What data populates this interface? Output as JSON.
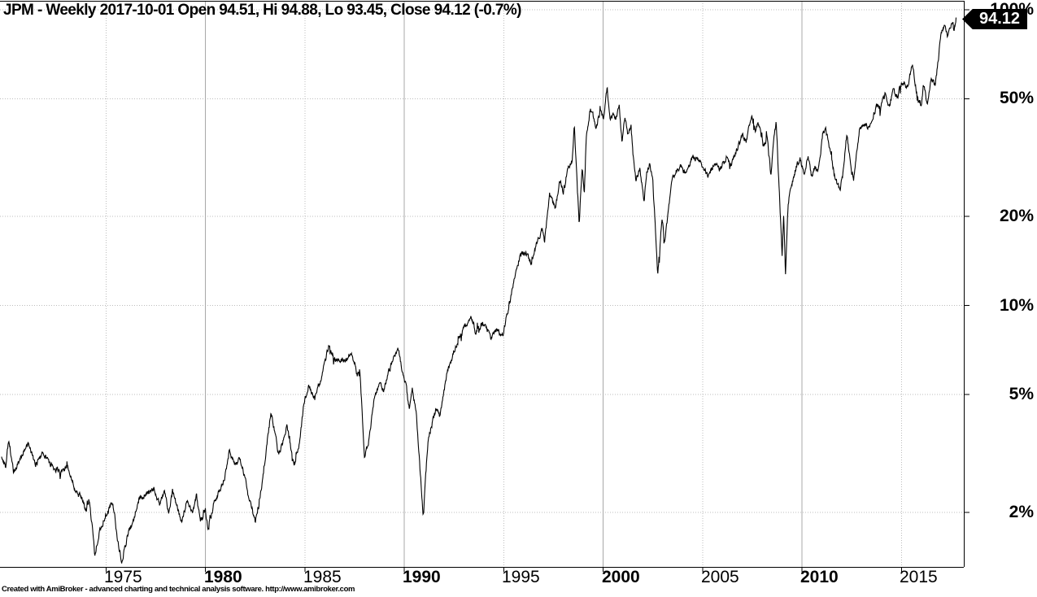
{
  "title": "JPM - Weekly 2017-10-01 Open 94.51, Hi 94.88, Lo 93.45, Close 94.12 (-0.7%)",
  "price_marker": {
    "label": "94.12"
  },
  "footer": {
    "credit": "Created with AmiBroker - advanced charting and technical analysis software. http://www.amibroker.com"
  },
  "colors": {
    "background": "#ffffff",
    "line": "#000000",
    "grid_dotted": "#bcbcbc",
    "grid_solid": "#a8a8a8",
    "axis": "#000000",
    "marker_bg": "#000000",
    "marker_text": "#ffffff"
  },
  "chart_data": {
    "type": "line",
    "title": "JPM - Weekly 2017-10-01 Open 94.51, Hi 94.88, Lo 93.45, Close 94.12 (-0.7%)",
    "symbol": "JPM",
    "interval": "Weekly",
    "last_bar": {
      "date": "2017-10-01",
      "open": 94.51,
      "high": 94.88,
      "low": 93.45,
      "close": 94.12,
      "change_pct": "-0.7%"
    },
    "y_axis": {
      "scale": "log",
      "side": "right",
      "ticks": [
        {
          "label": "100%",
          "value": 100
        },
        {
          "label": "50%",
          "value": 50
        },
        {
          "label": "20%",
          "value": 20
        },
        {
          "label": "10%",
          "value": 10
        },
        {
          "label": "5%",
          "value": 5
        },
        {
          "label": "2%",
          "value": 2
        }
      ],
      "range": [
        1.3,
        105
      ]
    },
    "x_axis": {
      "unit": "year",
      "range": [
        1969.7,
        2018.1
      ],
      "ticks": [
        {
          "label": "1975",
          "year": 1975,
          "bold": false
        },
        {
          "label": "1980",
          "year": 1980,
          "bold": true
        },
        {
          "label": "1985",
          "year": 1985,
          "bold": false
        },
        {
          "label": "1990",
          "year": 1990,
          "bold": true
        },
        {
          "label": "1995",
          "year": 1995,
          "bold": false
        },
        {
          "label": "2000",
          "year": 2000,
          "bold": true
        },
        {
          "label": "2005",
          "year": 2005,
          "bold": false
        },
        {
          "label": "2010",
          "year": 2010,
          "bold": true
        },
        {
          "label": "2015",
          "year": 2015,
          "bold": false
        }
      ]
    },
    "series": [
      {
        "name": "JPM weekly close (percent scale)",
        "points": [
          [
            1969.75,
            3.05
          ],
          [
            1969.95,
            2.85
          ],
          [
            1970.1,
            3.5
          ],
          [
            1970.35,
            2.72
          ],
          [
            1970.7,
            3.05
          ],
          [
            1971.1,
            3.43
          ],
          [
            1971.45,
            2.9
          ],
          [
            1971.8,
            3.18
          ],
          [
            1972.4,
            2.81
          ],
          [
            1972.8,
            2.76
          ],
          [
            1973.0,
            2.9
          ],
          [
            1973.4,
            2.44
          ],
          [
            1973.8,
            2.23
          ],
          [
            1974.0,
            2.0
          ],
          [
            1974.15,
            2.22
          ],
          [
            1974.45,
            1.45
          ],
          [
            1974.65,
            1.7
          ],
          [
            1975.0,
            1.98
          ],
          [
            1975.35,
            2.15
          ],
          [
            1975.6,
            1.6
          ],
          [
            1975.8,
            1.37
          ],
          [
            1976.1,
            1.68
          ],
          [
            1976.4,
            1.9
          ],
          [
            1976.65,
            2.22
          ],
          [
            1977.0,
            2.3
          ],
          [
            1977.4,
            2.43
          ],
          [
            1977.7,
            2.12
          ],
          [
            1977.95,
            2.36
          ],
          [
            1978.15,
            1.97
          ],
          [
            1978.35,
            2.36
          ],
          [
            1978.8,
            1.85
          ],
          [
            1979.1,
            2.23
          ],
          [
            1979.35,
            1.97
          ],
          [
            1979.55,
            2.28
          ],
          [
            1979.75,
            1.85
          ],
          [
            1980.0,
            2.03
          ],
          [
            1980.15,
            1.73
          ],
          [
            1980.4,
            2.12
          ],
          [
            1980.7,
            2.36
          ],
          [
            1980.95,
            2.6
          ],
          [
            1981.2,
            3.21
          ],
          [
            1981.5,
            2.85
          ],
          [
            1981.75,
            3.05
          ],
          [
            1982.1,
            2.4
          ],
          [
            1982.5,
            1.85
          ],
          [
            1982.85,
            2.5
          ],
          [
            1983.3,
            4.4
          ],
          [
            1983.7,
            3.1
          ],
          [
            1984.1,
            3.93
          ],
          [
            1984.45,
            2.87
          ],
          [
            1984.7,
            3.3
          ],
          [
            1984.95,
            4.67
          ],
          [
            1985.2,
            5.35
          ],
          [
            1985.5,
            4.85
          ],
          [
            1985.85,
            5.8
          ],
          [
            1986.2,
            7.35
          ],
          [
            1986.55,
            6.6
          ],
          [
            1987.0,
            6.5
          ],
          [
            1987.35,
            6.9
          ],
          [
            1987.6,
            5.95
          ],
          [
            1987.78,
            5.8
          ],
          [
            1988.0,
            3.1
          ],
          [
            1988.2,
            3.4
          ],
          [
            1988.5,
            4.95
          ],
          [
            1988.8,
            5.5
          ],
          [
            1988.95,
            5.2
          ],
          [
            1989.4,
            6.55
          ],
          [
            1989.7,
            7.1
          ],
          [
            1989.95,
            5.75
          ],
          [
            1990.1,
            5.3
          ],
          [
            1990.25,
            4.35
          ],
          [
            1990.4,
            5.2
          ],
          [
            1990.6,
            4.3
          ],
          [
            1990.95,
            1.97
          ],
          [
            1991.2,
            3.53
          ],
          [
            1991.6,
            4.5
          ],
          [
            1991.8,
            4.2
          ],
          [
            1992.1,
            5.7
          ],
          [
            1992.5,
            7.0
          ],
          [
            1992.85,
            8.05
          ],
          [
            1993.1,
            8.6
          ],
          [
            1993.35,
            9.2
          ],
          [
            1993.6,
            8.1
          ],
          [
            1994.0,
            8.8
          ],
          [
            1994.35,
            7.8
          ],
          [
            1994.7,
            8.4
          ],
          [
            1994.9,
            7.7
          ],
          [
            1995.1,
            8.9
          ],
          [
            1995.35,
            10.5
          ],
          [
            1995.6,
            13.0
          ],
          [
            1995.8,
            14.5
          ],
          [
            1996.05,
            15.3
          ],
          [
            1996.4,
            13.9
          ],
          [
            1996.7,
            16.6
          ],
          [
            1996.95,
            18.2
          ],
          [
            1997.05,
            16.3
          ],
          [
            1997.3,
            23.8
          ],
          [
            1997.6,
            21.4
          ],
          [
            1997.8,
            26.2
          ],
          [
            1998.0,
            24.3
          ],
          [
            1998.25,
            29.4
          ],
          [
            1998.45,
            31.0
          ],
          [
            1998.55,
            40.0
          ],
          [
            1998.8,
            18.8
          ],
          [
            1998.95,
            30.0
          ],
          [
            1999.05,
            23.7
          ],
          [
            1999.15,
            36.6
          ],
          [
            1999.35,
            46.0
          ],
          [
            1999.55,
            43.0
          ],
          [
            1999.65,
            39.9
          ],
          [
            1999.85,
            45.4
          ],
          [
            2000.05,
            43.4
          ],
          [
            2000.2,
            54.3
          ],
          [
            2000.35,
            41.9
          ],
          [
            2000.5,
            45.4
          ],
          [
            2000.65,
            42.8
          ],
          [
            2000.8,
            46.8
          ],
          [
            2000.95,
            35.7
          ],
          [
            2001.1,
            43.4
          ],
          [
            2001.25,
            38.0
          ],
          [
            2001.4,
            40.9
          ],
          [
            2001.5,
            32.4
          ],
          [
            2001.65,
            26.5
          ],
          [
            2001.85,
            29.4
          ],
          [
            2002.05,
            22.6
          ],
          [
            2002.2,
            28.5
          ],
          [
            2002.35,
            30.0
          ],
          [
            2002.5,
            26.0
          ],
          [
            2002.75,
            12.8
          ],
          [
            2002.95,
            19.5
          ],
          [
            2003.1,
            16.9
          ],
          [
            2003.5,
            27.3
          ],
          [
            2003.9,
            29.8
          ],
          [
            2004.15,
            27.7
          ],
          [
            2004.5,
            32.1
          ],
          [
            2004.8,
            30.7
          ],
          [
            2005.1,
            28.5
          ],
          [
            2005.3,
            27.5
          ],
          [
            2005.6,
            30.4
          ],
          [
            2005.85,
            29.0
          ],
          [
            2006.2,
            31.4
          ],
          [
            2006.45,
            29.8
          ],
          [
            2007.0,
            37.9
          ],
          [
            2007.2,
            35.9
          ],
          [
            2007.45,
            43.9
          ],
          [
            2007.65,
            39.1
          ],
          [
            2007.8,
            41.5
          ],
          [
            2008.05,
            34.5
          ],
          [
            2008.25,
            36.7
          ],
          [
            2008.45,
            27.3
          ],
          [
            2008.55,
            34.5
          ],
          [
            2008.7,
            42.0
          ],
          [
            2008.85,
            25.0
          ],
          [
            2009.0,
            15.1
          ],
          [
            2009.08,
            20.8
          ],
          [
            2009.17,
            12.5
          ],
          [
            2009.3,
            22.2
          ],
          [
            2009.45,
            25.1
          ],
          [
            2009.7,
            29.5
          ],
          [
            2009.9,
            31.4
          ],
          [
            2010.1,
            28.1
          ],
          [
            2010.3,
            32.1
          ],
          [
            2010.5,
            27.3
          ],
          [
            2010.65,
            29.8
          ],
          [
            2010.8,
            28.1
          ],
          [
            2011.05,
            38.3
          ],
          [
            2011.2,
            39.7
          ],
          [
            2011.45,
            31.9
          ],
          [
            2011.65,
            27.3
          ],
          [
            2011.9,
            24.5
          ],
          [
            2012.05,
            27.3
          ],
          [
            2012.25,
            38.0
          ],
          [
            2012.5,
            28.1
          ],
          [
            2012.6,
            26.8
          ],
          [
            2012.9,
            39.9
          ],
          [
            2013.2,
            41.5
          ],
          [
            2013.4,
            39.1
          ],
          [
            2013.75,
            48.0
          ],
          [
            2013.95,
            46.4
          ],
          [
            2014.2,
            52.0
          ],
          [
            2014.4,
            47.3
          ],
          [
            2014.6,
            53.8
          ],
          [
            2014.8,
            50.3
          ],
          [
            2015.0,
            57.2
          ],
          [
            2015.3,
            54.7
          ],
          [
            2015.55,
            65.8
          ],
          [
            2015.75,
            53.8
          ],
          [
            2016.0,
            47.0
          ],
          [
            2016.1,
            56.0
          ],
          [
            2016.3,
            48.3
          ],
          [
            2016.5,
            59.9
          ],
          [
            2016.7,
            56.0
          ],
          [
            2016.85,
            67.1
          ],
          [
            2017.0,
            83.7
          ],
          [
            2017.2,
            89.2
          ],
          [
            2017.3,
            81.0
          ],
          [
            2017.45,
            85.5
          ],
          [
            2017.55,
            90.8
          ],
          [
            2017.65,
            85.5
          ],
          [
            2017.75,
            94.12
          ]
        ]
      }
    ],
    "grid": {
      "horizontal": "dotted",
      "vertical_mid_decade": "dotted",
      "vertical_decade": "solid"
    }
  }
}
